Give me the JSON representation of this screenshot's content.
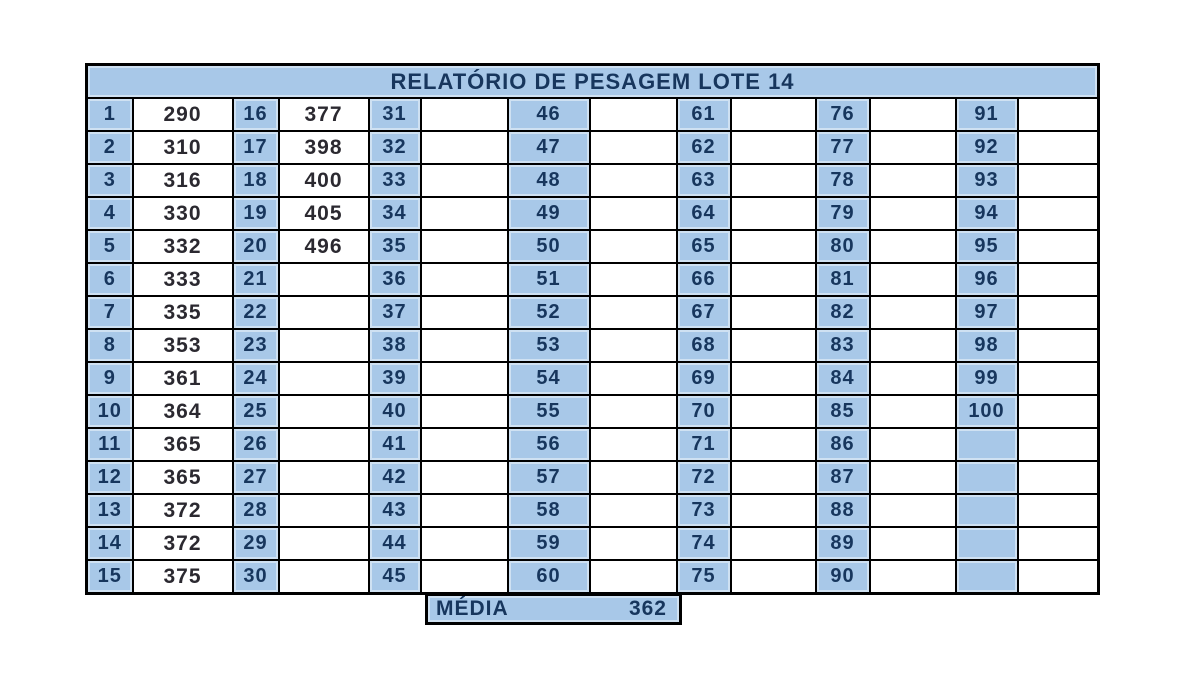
{
  "title": "RELATÓRIO DE PESAGEM LOTE  14",
  "media": {
    "label": "MÉDIA",
    "value": "362"
  },
  "colors": {
    "cell_fill": "#a8c8e8",
    "index_text": "#17365d",
    "value_text": "#2b2930",
    "border": "#000000",
    "background": "#ffffff"
  },
  "grid": {
    "rows_per_column": 15,
    "column_pairs": 7,
    "index_start": 1,
    "index_end": 100,
    "values": [
      "290",
      "310",
      "316",
      "330",
      "332",
      "333",
      "335",
      "353",
      "361",
      "364",
      "365",
      "365",
      "372",
      "372",
      "375",
      "377",
      "398",
      "400",
      "405",
      "496"
    ]
  }
}
